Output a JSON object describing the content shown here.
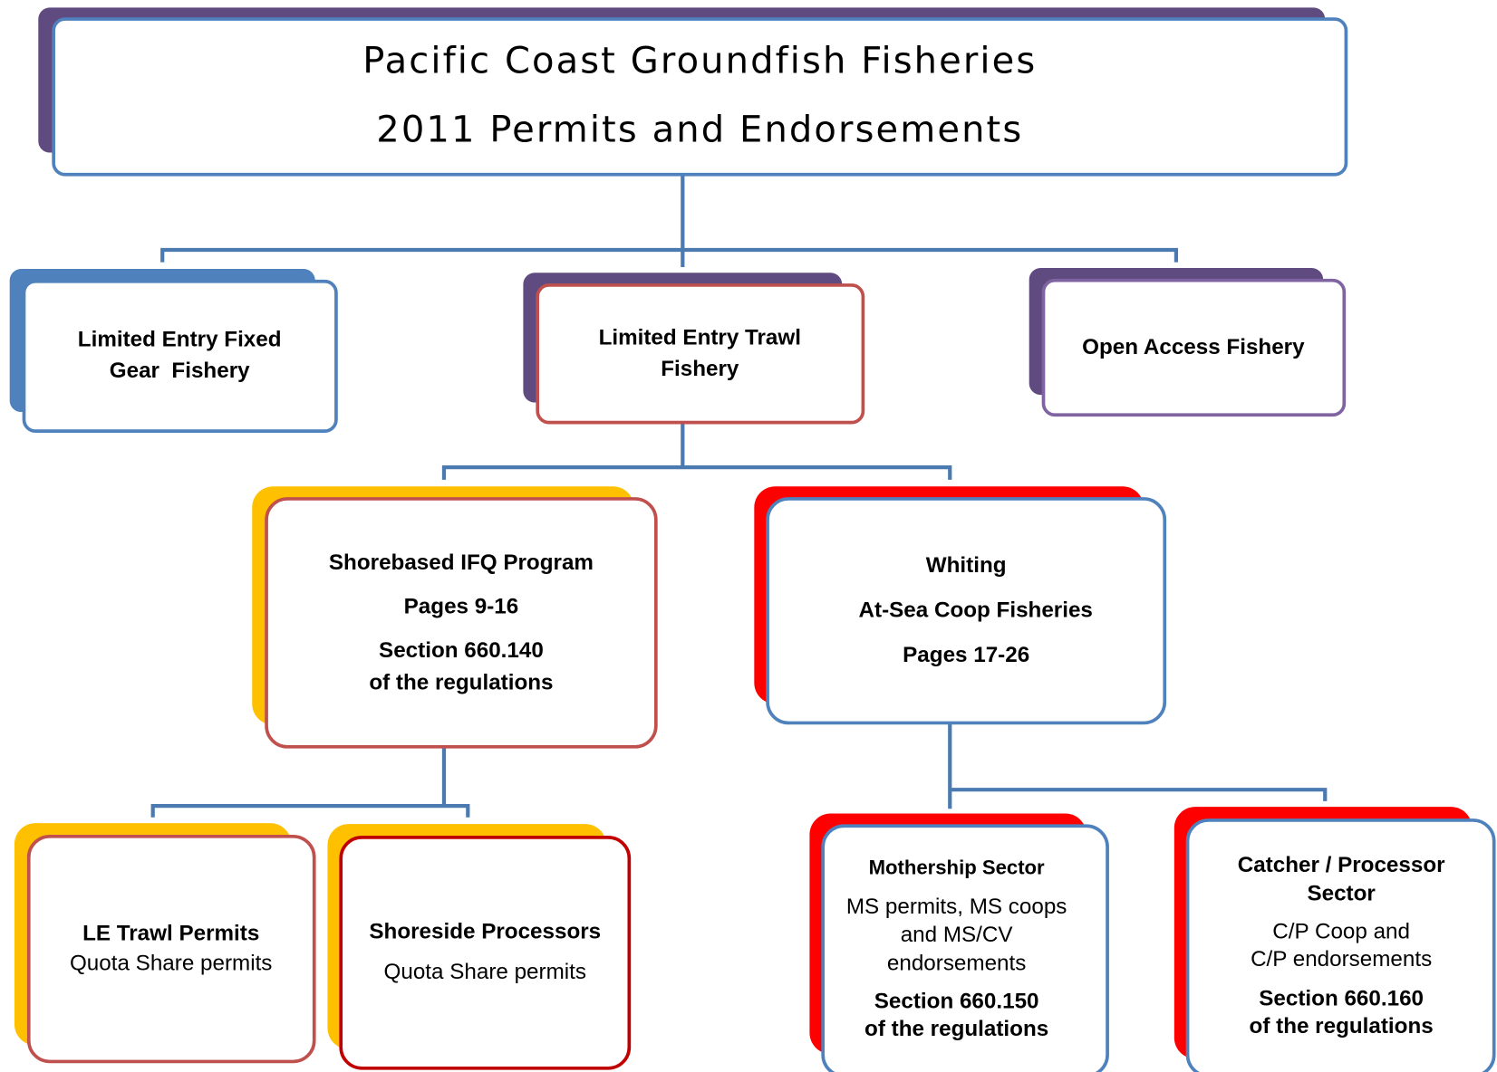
{
  "title": {
    "line1": "Pacific Coast Groundfish Fisheries",
    "line2": "2011 Permits and Endorsements"
  },
  "nodes": [
    {
      "lines": [
        "Limited Entry Fixed",
        "Gear  Fishery"
      ]
    },
    {
      "lines": [
        "Limited Entry Trawl",
        "Fishery"
      ]
    },
    {
      "lines": [
        "Open Access Fishery"
      ]
    },
    {
      "lines": [
        "Shorebased IFQ Program",
        "Pages 9-16",
        "Section 660.140",
        "of the regulations"
      ]
    },
    {
      "lines": [
        "Whiting",
        "At-Sea Coop Fisheries",
        "Pages 17-26"
      ]
    },
    {
      "lines": [
        "LE Trawl Permits",
        "Quota Share permits"
      ]
    },
    {
      "lines": [
        "Shoreside Processors",
        "Quota Share permits"
      ]
    },
    {
      "lines": [
        "Mothership Sector",
        "MS permits, MS coops",
        "and MS/CV",
        "endorsements",
        "Section 660.150",
        "of the regulations"
      ]
    },
    {
      "lines": [
        "Catcher / Processor",
        "Sector",
        "C/P Coop and",
        "C/P endorsements",
        "Section 660.160",
        "of the regulations"
      ]
    }
  ]
}
